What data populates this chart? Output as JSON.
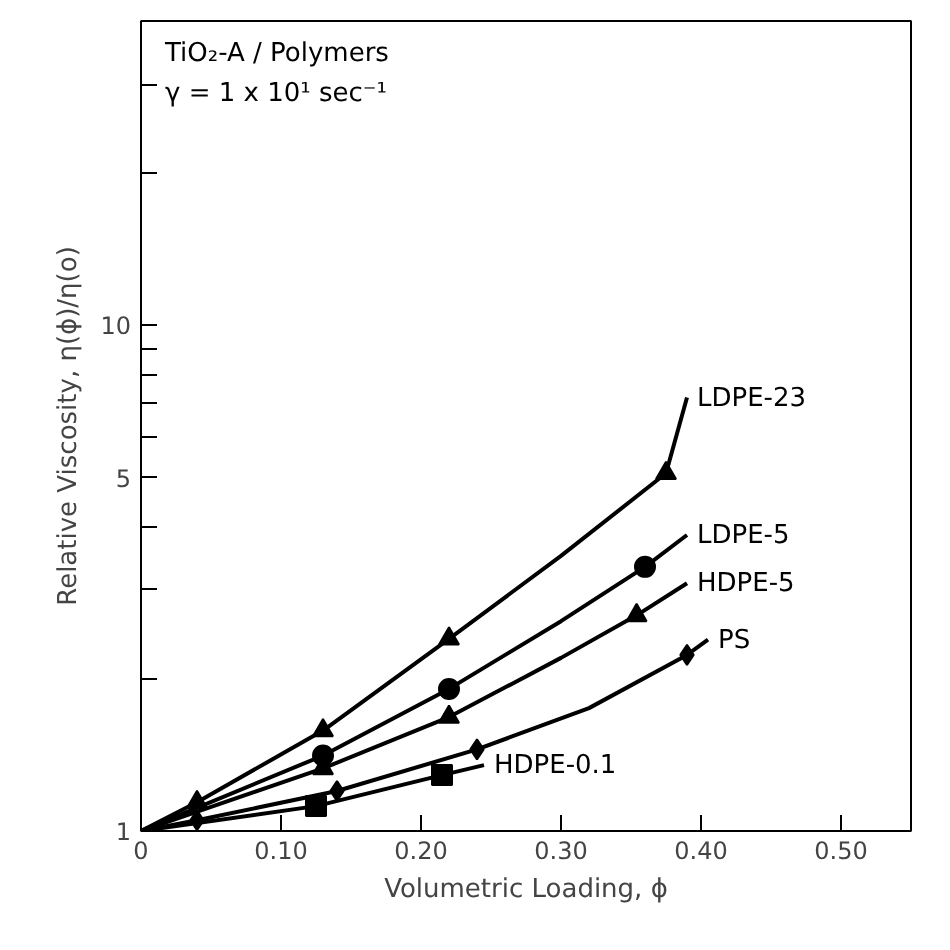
{
  "chart_data": {
    "type": "line",
    "xlabel": "Volumetric Loading, ϕ",
    "ylabel": "Relative Viscosity, η(ϕ)/η(o)",
    "annotations": [
      "TiO₂-A / Polymers",
      "γ = 1 x 10¹ sec⁻¹"
    ],
    "log": "y",
    "grid": false,
    "line_style": "solid",
    "xlim": [
      0,
      0.55
    ],
    "ylim": [
      1,
      40
    ],
    "xticks": [
      0,
      {
        "value": 0.1,
        "label": "0.10"
      },
      {
        "value": 0.2,
        "label": "0.20"
      },
      {
        "value": 0.3,
        "label": "0.30"
      },
      {
        "value": 0.4,
        "label": "0.40"
      },
      {
        "value": 0.5,
        "label": "0.50"
      }
    ],
    "yticks": [
      1,
      {
        "value": 2,
        "label": null
      },
      {
        "value": 3,
        "label": null
      },
      {
        "value": 4,
        "label": null
      },
      5,
      {
        "value": 6,
        "label": null
      },
      {
        "value": 7,
        "label": null
      },
      {
        "value": 8,
        "label": null
      },
      {
        "value": 9,
        "label": null
      },
      10,
      {
        "value": 20,
        "label": null
      },
      {
        "value": 30,
        "label": null
      },
      {
        "value": 40,
        "label": null
      }
    ],
    "series": [
      {
        "name": "LDPE-23",
        "color": "#000000",
        "x": [
          0,
          0.04,
          0.13,
          0.22,
          0.3,
          0.375,
          0.39
        ],
        "values": [
          1,
          1.14,
          1.58,
          2.4,
          3.5,
          5.1,
          7.2
        ]
      },
      {
        "name": "LDPE-5",
        "color": "#000000",
        "x": [
          0,
          0.13,
          0.22,
          0.3,
          0.36,
          0.39
        ],
        "values": [
          1,
          1.41,
          1.91,
          2.6,
          3.33,
          3.85
        ]
      },
      {
        "name": "HDPE-5",
        "color": "#000000",
        "x": [
          0,
          0.13,
          0.22,
          0.3,
          0.354,
          0.39
        ],
        "values": [
          1,
          1.33,
          1.68,
          2.2,
          2.67,
          3.09
        ]
      },
      {
        "name": "PS",
        "color": "#000000",
        "x": [
          0,
          0.04,
          0.14,
          0.24,
          0.32,
          0.39,
          0.405
        ],
        "values": [
          1,
          1.05,
          1.2,
          1.45,
          1.75,
          2.23,
          2.39
        ]
      },
      {
        "name": "HDPE-0.1",
        "color": "#000000",
        "x": [
          0,
          0.125,
          0.215,
          0.245
        ],
        "values": [
          1,
          1.12,
          1.29,
          1.35
        ]
      },
      {
        "type": "scatter",
        "marker": "triangle",
        "color": "#000000",
        "x": [
          0.04,
          0.13,
          0.22,
          0.375
        ],
        "values": [
          1.14,
          1.58,
          2.4,
          5.1
        ]
      },
      {
        "type": "scatter",
        "marker": "circle",
        "color": "#000000",
        "x": [
          0.13,
          0.22,
          0.36
        ],
        "values": [
          1.41,
          1.91,
          3.33
        ]
      },
      {
        "type": "scatter",
        "marker": "triangle",
        "color": "#000000",
        "x": [
          0.13,
          0.22,
          0.354
        ],
        "values": [
          1.33,
          1.68,
          2.67
        ]
      },
      {
        "type": "scatter",
        "marker": "diamond",
        "color": "#000000",
        "x": [
          0.04,
          0.14,
          0.24,
          0.39
        ],
        "values": [
          1.05,
          1.2,
          1.45,
          2.23
        ]
      },
      {
        "type": "scatter",
        "marker": "square",
        "color": "#000000",
        "x": [
          0.125,
          0.215
        ],
        "values": [
          1.12,
          1.29
        ]
      }
    ]
  }
}
